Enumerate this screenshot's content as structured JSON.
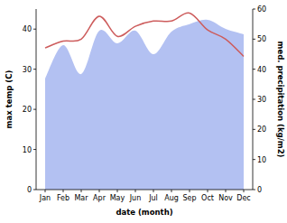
{
  "chart_data": {
    "type": "line",
    "categories": [
      "Jan",
      "Feb",
      "Mar",
      "Apr",
      "May",
      "Jun",
      "Jul",
      "Aug",
      "Sep",
      "Oct",
      "Nov",
      "Dec"
    ],
    "xlabel": "date (month)",
    "ylabel": "max temp (C)",
    "y2label": "med. precipitation (kg/m2)",
    "ylim": [
      0,
      45
    ],
    "yticks": [
      0,
      10,
      20,
      30,
      40
    ],
    "y2lim": [
      0,
      60
    ],
    "y2ticks": [
      0,
      10,
      20,
      30,
      40,
      50,
      60
    ],
    "grid": false,
    "series": [
      {
        "type": "line",
        "color": "#cd5c5c",
        "values": [
          35.3,
          37,
          37.5,
          43.2,
          38.2,
          40.7,
          42,
          42,
          44,
          39.8,
          37.5,
          33.2
        ]
      },
      {
        "type": "area",
        "axis": "y2",
        "color": "#b3c1f2",
        "values": [
          36.9,
          48,
          38.4,
          52.8,
          48.6,
          52.8,
          45,
          52.5,
          55,
          56.4,
          53.4,
          51.6
        ]
      }
    ]
  }
}
